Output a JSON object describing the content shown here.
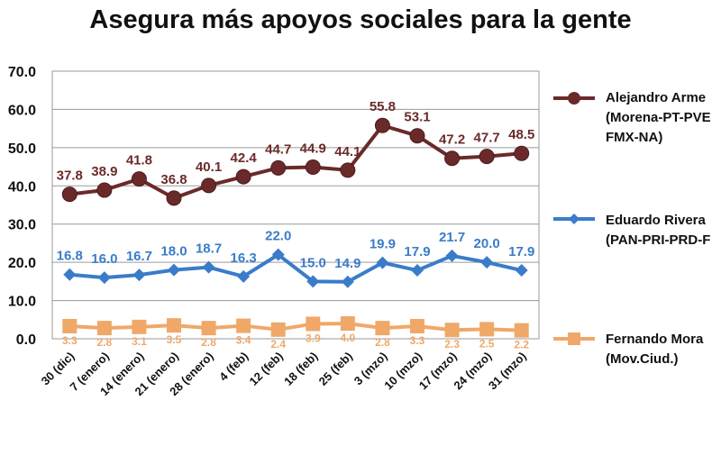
{
  "chart_data": {
    "type": "line",
    "title": "Asegura más apoyos sociales para la gente",
    "categories": [
      "30 (dic)",
      "7 (enero)",
      "14 (enero)",
      "21 (enero)",
      "28 (enero)",
      "4 (feb)",
      "12 (feb)",
      "18 (feb)",
      "25 (feb)",
      "3 (mzo)",
      "10 (mzo)",
      "17 (mzo)",
      "24 (mzo)",
      "31 (mzo)"
    ],
    "ylim": [
      0,
      70
    ],
    "yticks": [
      "0.0",
      "10.0",
      "20.0",
      "30.0",
      "40.0",
      "50.0",
      "60.0",
      "70.0"
    ],
    "grid": true,
    "legend_position": "right",
    "series": [
      {
        "legend_lines": [
          "Alejandro Arme",
          "(Morena-PT-PVE",
          "FMX-NA)"
        ],
        "color": "#6b2a2a",
        "label_color": "#6b2a2a",
        "marker": "circle",
        "values": [
          37.8,
          38.9,
          41.8,
          36.8,
          40.1,
          42.4,
          44.7,
          44.9,
          44.1,
          55.8,
          53.1,
          47.2,
          47.7,
          48.5
        ],
        "labels": [
          "37.8",
          "38.9",
          "41.8",
          "36.8",
          "40.1",
          "42.4",
          "44.7",
          "44.9",
          "44.1",
          "55.8",
          "53.1",
          "47.2",
          "47.7",
          "48.5"
        ]
      },
      {
        "legend_lines": [
          "Eduardo Rivera",
          "(PAN-PRI-PRD-F"
        ],
        "color": "#3a7cc9",
        "label_color": "#3a7cc9",
        "marker": "diamond",
        "values": [
          16.8,
          16.0,
          16.7,
          18.0,
          18.7,
          16.3,
          22.0,
          15.0,
          14.9,
          19.9,
          17.9,
          21.7,
          20.0,
          17.9
        ],
        "labels": [
          "16.8",
          "16.0",
          "16.7",
          "18.0",
          "18.7",
          "16.3",
          "22.0",
          "15.0",
          "14.9",
          "19.9",
          "17.9",
          "21.7",
          "20.0",
          "17.9"
        ]
      },
      {
        "legend_lines": [
          "Fernando Mora",
          "(Mov.Ciud.)"
        ],
        "color": "#f0a868",
        "label_color": "#f0a868",
        "marker": "square",
        "values": [
          3.3,
          2.8,
          3.1,
          3.5,
          2.8,
          3.4,
          2.4,
          3.9,
          4.0,
          2.8,
          3.3,
          2.3,
          2.5,
          2.2
        ],
        "labels": [
          "3.3",
          "2.8",
          "3.1",
          "3.5",
          "2.8",
          "3.4",
          "2.4",
          "3.9",
          "4.0",
          "2.8",
          "3.3",
          "2.3",
          "2.5",
          "2.2"
        ]
      }
    ]
  }
}
